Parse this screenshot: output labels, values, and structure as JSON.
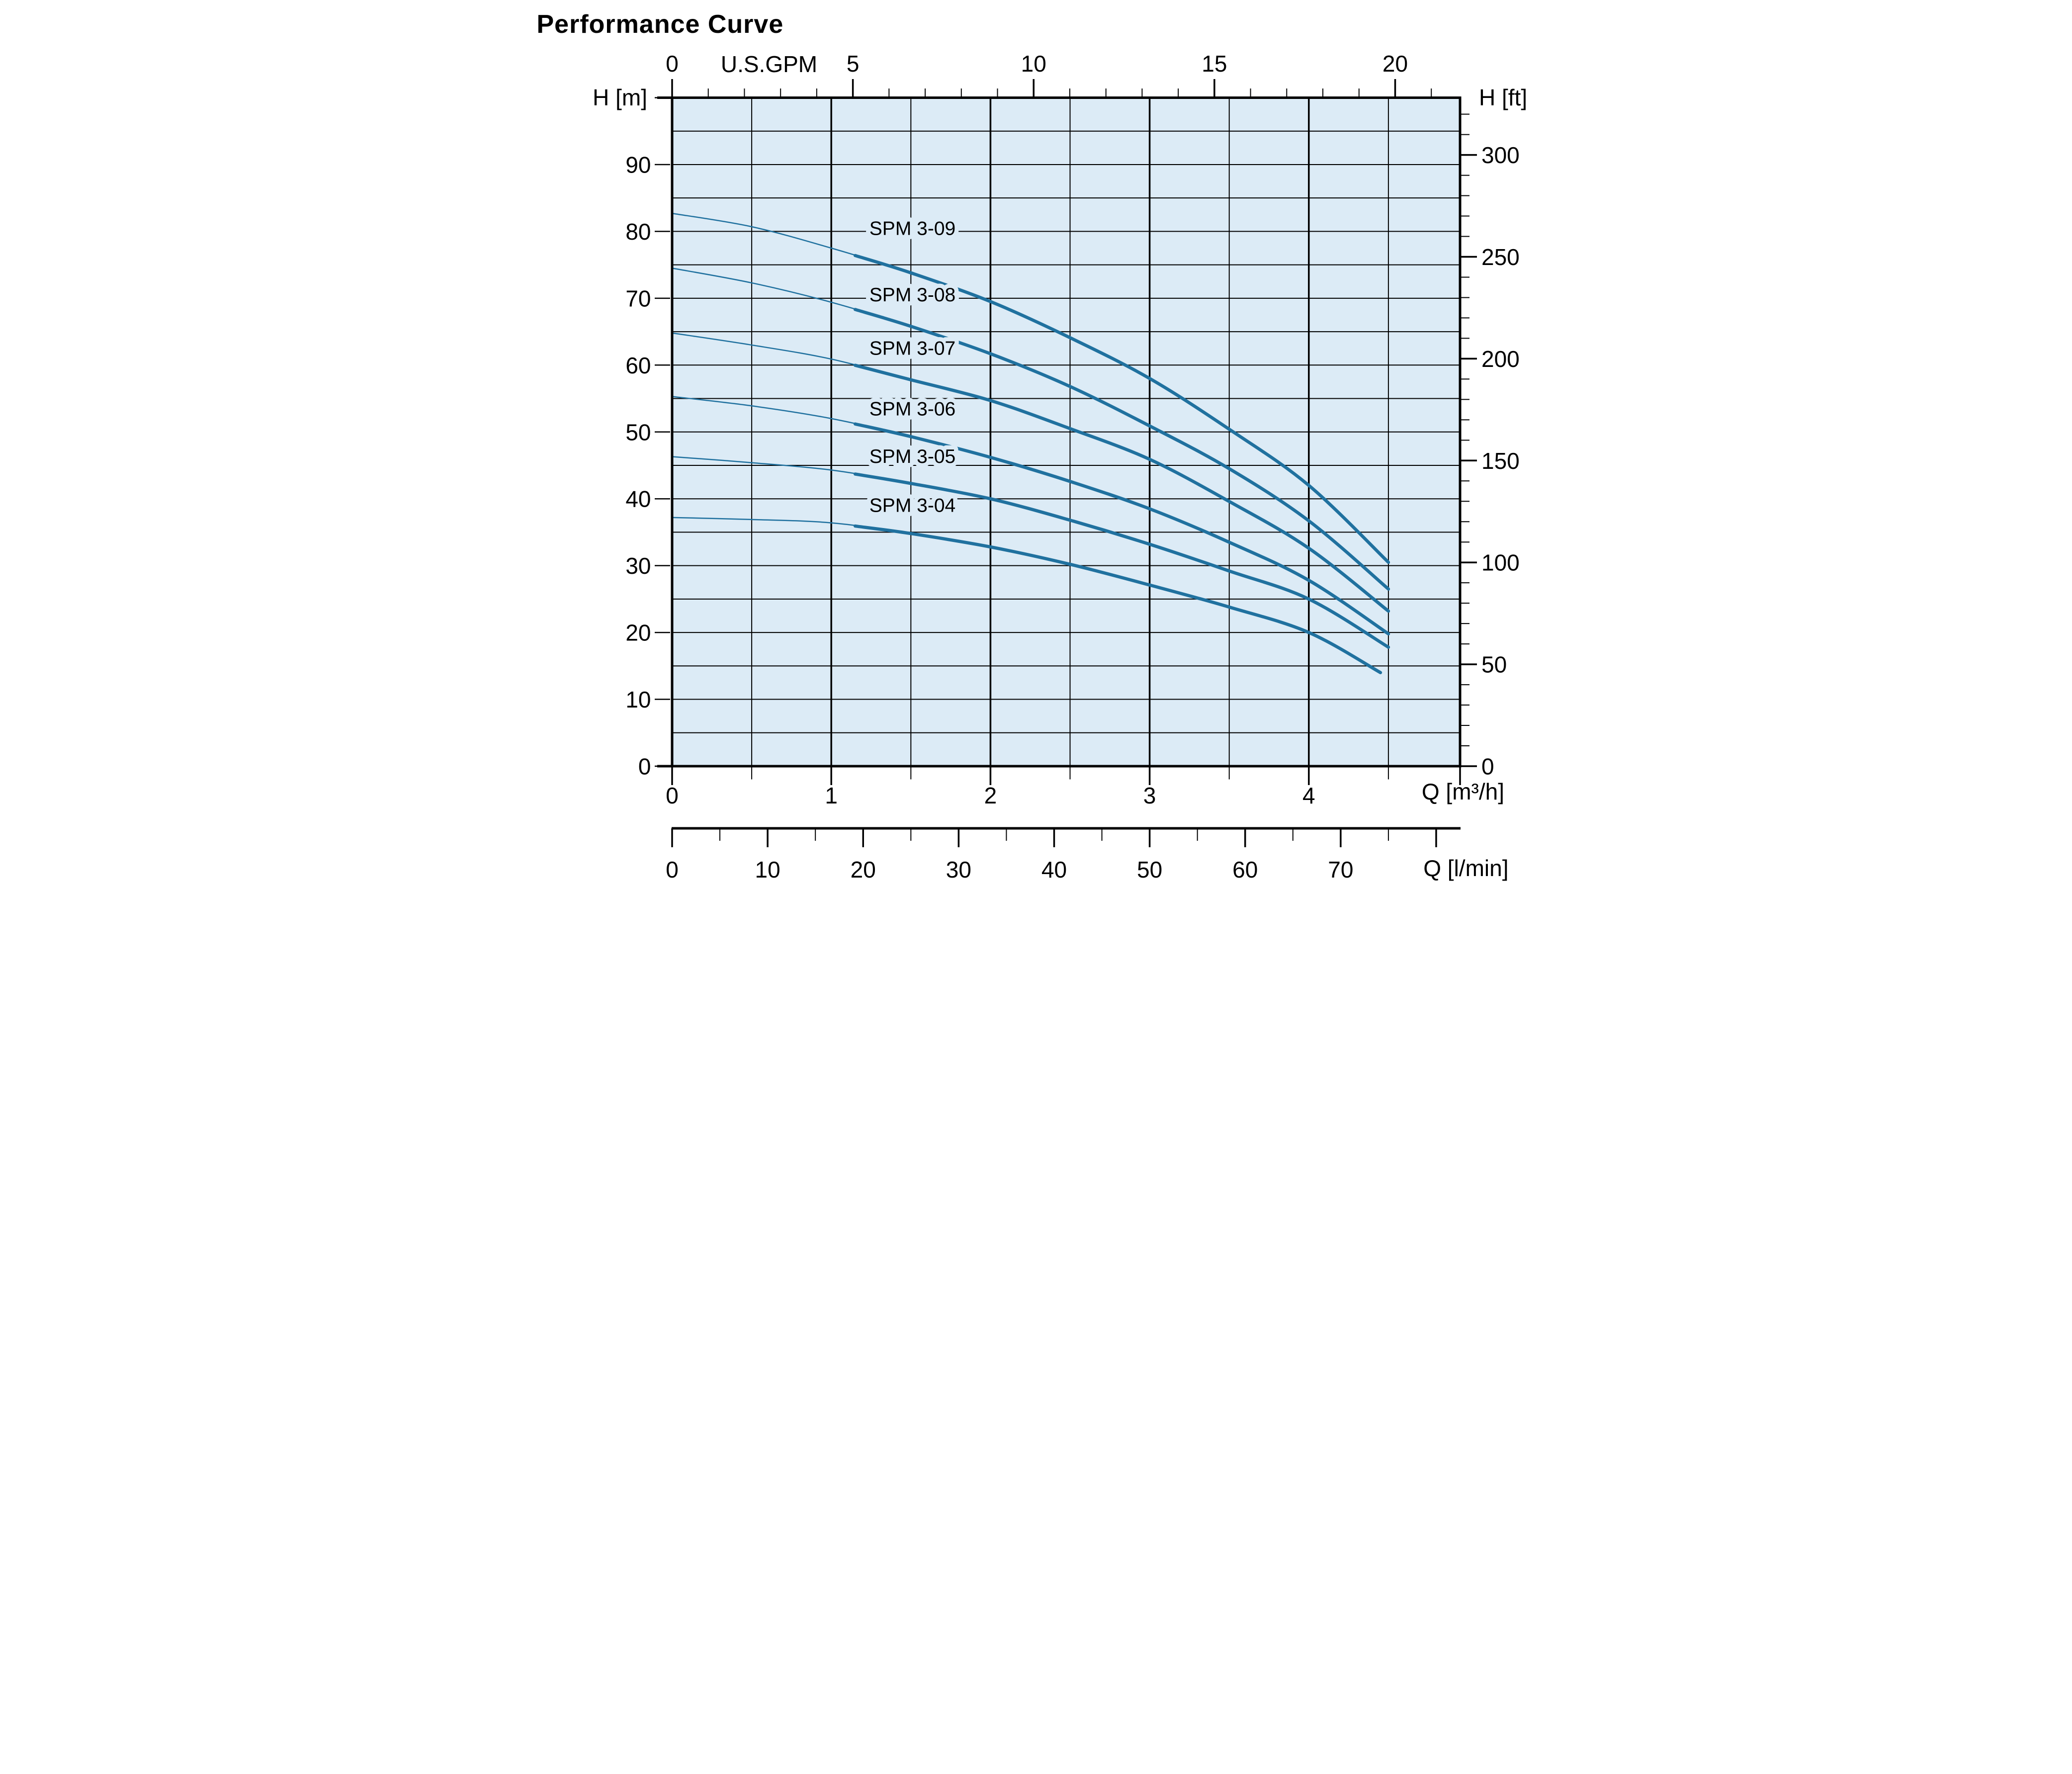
{
  "title": "Performance Curve",
  "colors": {
    "title": "#1b77a8",
    "curve": "#20719f",
    "plot_background": "#dcebf6",
    "axis": "#000000",
    "page_background": "#ffffff"
  },
  "chart_data": {
    "type": "line",
    "title": "Performance Curve",
    "grid": "on",
    "x_axis_bottom": {
      "label": "Q [m³/h]",
      "major_ticks": [
        0,
        1,
        2,
        3,
        4
      ],
      "minor_step": 0.5,
      "range": [
        0,
        4.95
      ]
    },
    "x_axis_top": {
      "label": "U.S.GPM",
      "major_ticks": [
        0,
        5,
        10,
        15,
        20
      ],
      "minor_step": 1,
      "minor_max": 21,
      "gpm_to_m3h": 0.22712
    },
    "x_ruler": {
      "label": "Q [l/min]",
      "major_ticks": [
        0,
        10,
        20,
        30,
        40,
        50,
        60,
        70,
        80
      ],
      "labeled_ticks": [
        0,
        10,
        20,
        30,
        40,
        50,
        60,
        70
      ],
      "minor_step": 5,
      "minor_max": 75,
      "lmin_to_m3h": 0.06
    },
    "y_axis_left": {
      "label": "H [m]",
      "labeled_ticks": [
        0,
        10,
        20,
        30,
        40,
        50,
        60,
        70,
        80,
        90
      ],
      "tick_step": 10,
      "grid_step": 5,
      "range": [
        0,
        100
      ]
    },
    "y_axis_right": {
      "label": "H [ft]",
      "labeled_ticks": [
        0,
        50,
        100,
        150,
        200,
        250,
        300
      ],
      "minor_step": 10,
      "minor_max": 320,
      "ft_to_m": 0.3048
    },
    "series": [
      {
        "name": "SPM 3-09",
        "points": [
          [
            0,
            82.7
          ],
          [
            0.5,
            80.7
          ],
          [
            1,
            77.5
          ],
          [
            1.5,
            73.8
          ],
          [
            2,
            69.5
          ],
          [
            2.5,
            64.1
          ],
          [
            3,
            58.0
          ],
          [
            3.5,
            50.4
          ],
          [
            4,
            42.0
          ],
          [
            4.5,
            30.5
          ]
        ],
        "label": {
          "q": 1.51,
          "h": 80.5
        }
      },
      {
        "name": "SPM 3-08",
        "points": [
          [
            0,
            74.5
          ],
          [
            0.5,
            72.3
          ],
          [
            1,
            69.4
          ],
          [
            1.5,
            65.8
          ],
          [
            2,
            61.7
          ],
          [
            2.5,
            56.8
          ],
          [
            3,
            50.9
          ],
          [
            3.5,
            44.5
          ],
          [
            4,
            36.7
          ],
          [
            4.5,
            26.5
          ]
        ],
        "label": {
          "q": 1.51,
          "h": 70.6
        }
      },
      {
        "name": "SPM 3-07",
        "points": [
          [
            0,
            64.8
          ],
          [
            0.5,
            63.0
          ],
          [
            1,
            60.9
          ],
          [
            1.5,
            57.8
          ],
          [
            2,
            54.7
          ],
          [
            2.5,
            50.5
          ],
          [
            3,
            45.9
          ],
          [
            3.5,
            39.6
          ],
          [
            4,
            32.6
          ],
          [
            4.5,
            23.2
          ]
        ],
        "label": {
          "q": 1.51,
          "h": 62.6
        }
      },
      {
        "name": "SPM 3-06",
        "points": [
          [
            0,
            55.3
          ],
          [
            0.5,
            53.9
          ],
          [
            1,
            52.0
          ],
          [
            1.5,
            49.3
          ],
          [
            2,
            46.2
          ],
          [
            2.5,
            42.6
          ],
          [
            3,
            38.5
          ],
          [
            3.5,
            33.5
          ],
          [
            4,
            27.8
          ],
          [
            4.5,
            19.8
          ]
        ],
        "label": {
          "q": 1.51,
          "h": 53.5
        }
      },
      {
        "name": "SPM 3-05",
        "points": [
          [
            0,
            46.3
          ],
          [
            0.5,
            45.4
          ],
          [
            1,
            44.3
          ],
          [
            1.5,
            42.3
          ],
          [
            2,
            40.0
          ],
          [
            2.5,
            36.8
          ],
          [
            3,
            33.2
          ],
          [
            3.5,
            29.2
          ],
          [
            4,
            25.0
          ],
          [
            4.5,
            17.8
          ]
        ],
        "label": {
          "q": 1.51,
          "h": 46.4
        }
      },
      {
        "name": "SPM 3-04",
        "points": [
          [
            0,
            37.2
          ],
          [
            0.5,
            36.9
          ],
          [
            1,
            36.4
          ],
          [
            1.5,
            34.8
          ],
          [
            2,
            32.8
          ],
          [
            2.5,
            30.2
          ],
          [
            3,
            27.1
          ],
          [
            3.5,
            23.8
          ],
          [
            4,
            20.0
          ],
          [
            4.45,
            14.0
          ]
        ],
        "label": {
          "q": 1.51,
          "h": 39.1
        }
      }
    ],
    "line_style": {
      "thin_until_q": 1.15,
      "thin_width": 5,
      "thick_width": 13
    }
  }
}
